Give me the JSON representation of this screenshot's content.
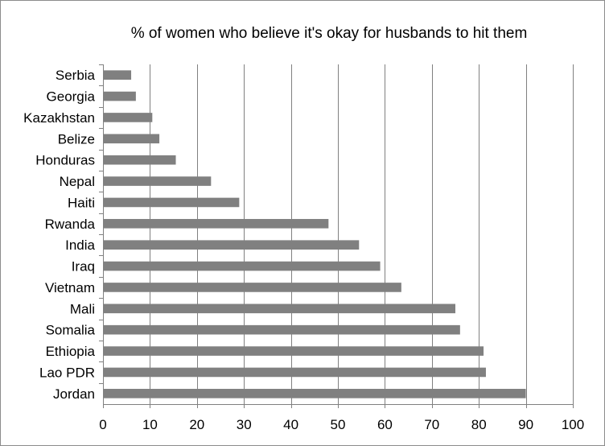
{
  "chart_data": {
    "type": "bar",
    "orientation": "horizontal",
    "title": "% of women who believe it's okay for husbands to hit them",
    "xlabel": "",
    "ylabel": "",
    "xlim": [
      0,
      100
    ],
    "xticks": [
      0,
      10,
      20,
      30,
      40,
      50,
      60,
      70,
      80,
      90,
      100
    ],
    "grid": "vertical",
    "legend": "none",
    "bar_color": "#808080",
    "categories": [
      "Serbia",
      "Georgia",
      "Kazakhstan",
      "Belize",
      "Honduras",
      "Nepal",
      "Haiti",
      "Rwanda",
      "India",
      "Iraq",
      "Vietnam",
      "Mali",
      "Somalia",
      "Ethiopia",
      "Lao PDR",
      "Jordan"
    ],
    "values": [
      6,
      7,
      10.5,
      12,
      15.5,
      23,
      29,
      48,
      54.5,
      59,
      63.5,
      75,
      76,
      81,
      81.5,
      90
    ]
  }
}
